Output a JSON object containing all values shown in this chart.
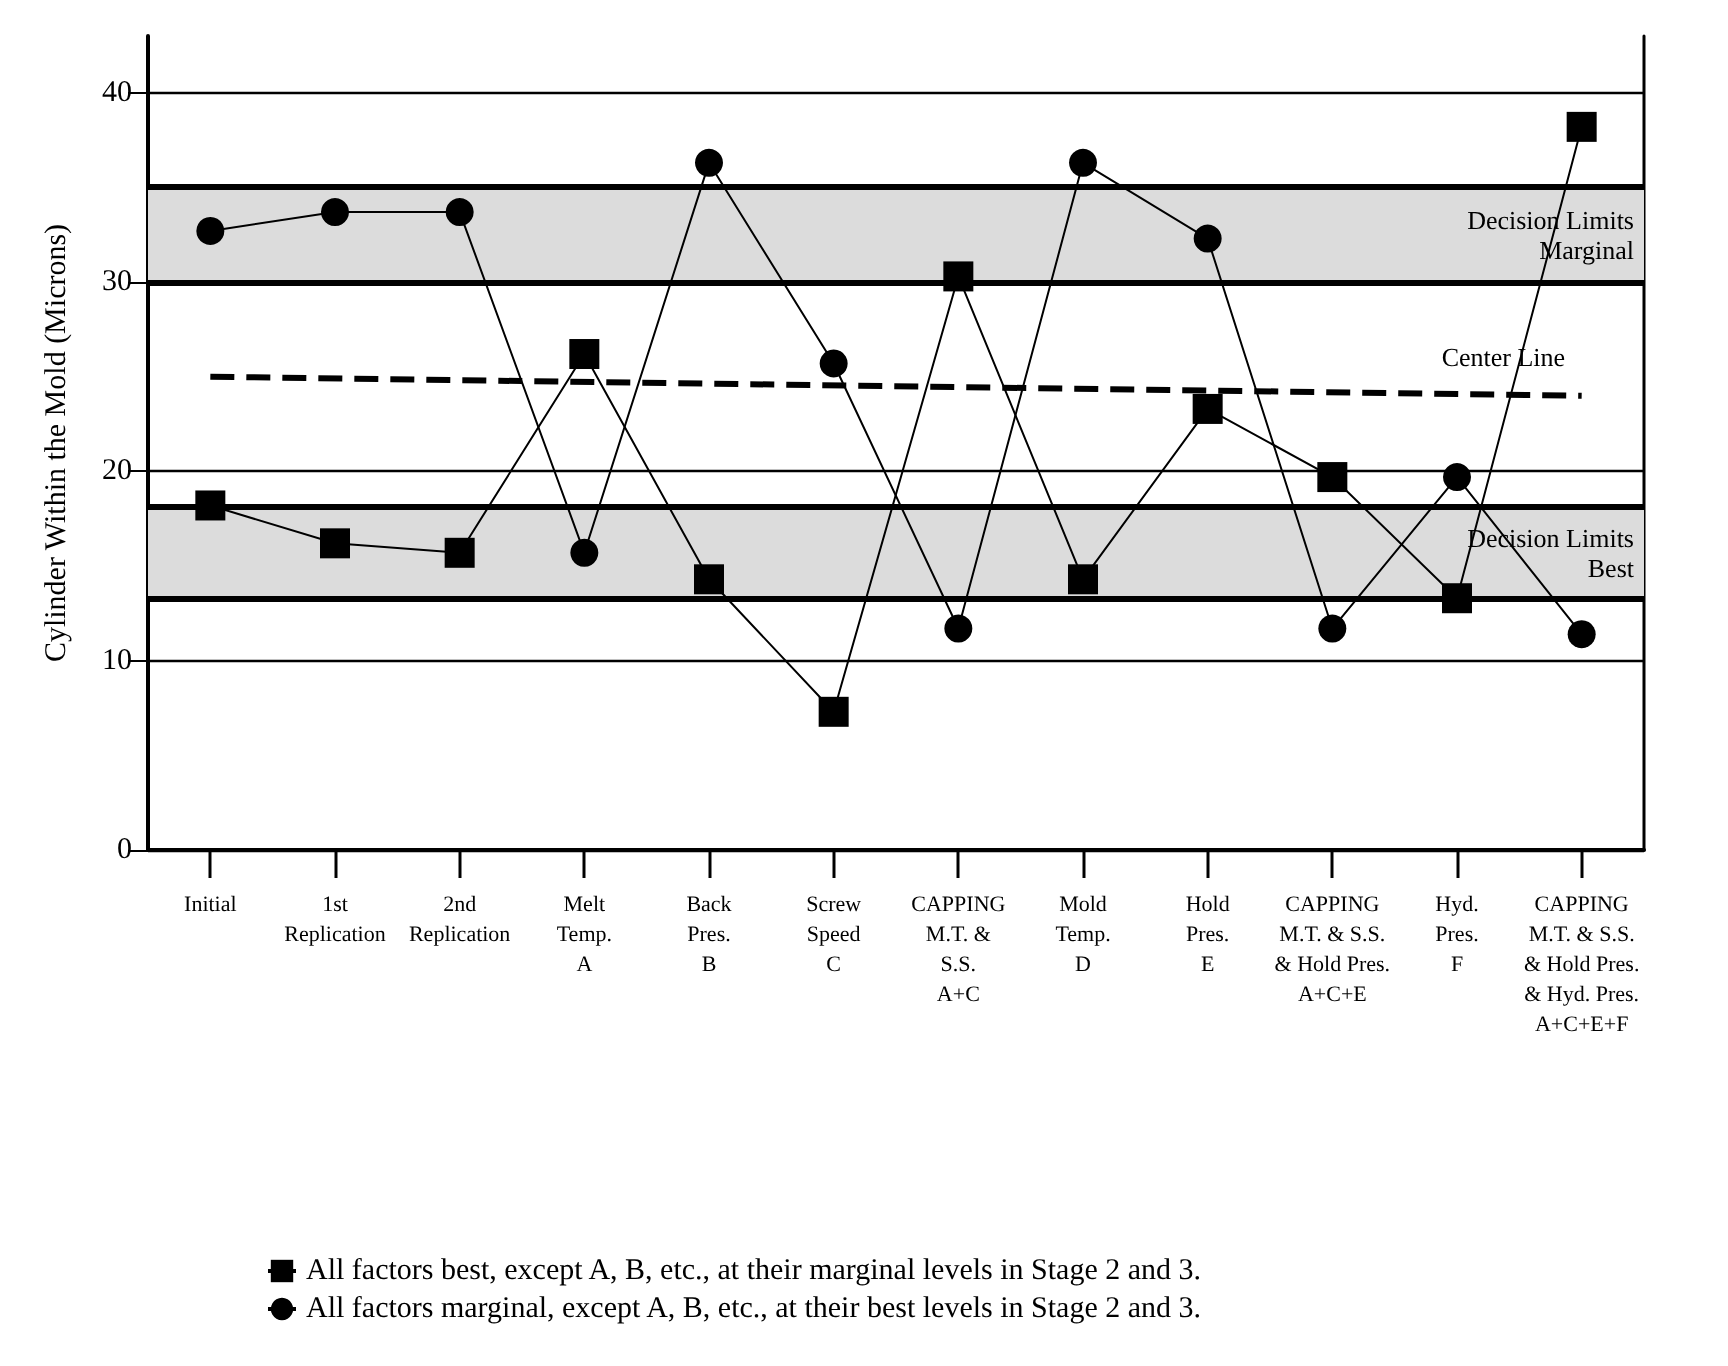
{
  "chart_data": {
    "type": "line",
    "ylabel": "Cylinder Within the Mold (Microns)",
    "categories": [
      "Initial",
      "1st\nReplication",
      "2nd\nReplication",
      "Melt\nTemp.\nA",
      "Back\nPres.\nB",
      "Screw\nSpeed\nC",
      "CAPPING\nM.T. &\nS.S.\nA+C",
      "Mold\nTemp.\nD",
      "Hold\nPres.\nE",
      "CAPPING\nM.T. & S.S.\n& Hold Pres.\nA+C+E",
      "Hyd.\nPres.\nF",
      "CAPPING\nM.T. & S.S.\n& Hold Pres.\n& Hyd. Pres.\nA+C+E+F"
    ],
    "series": [
      {
        "name": "All factors best, except A, B, etc., at their marginal levels in Stage 2 and 3.",
        "color": "#000000",
        "marker": "square",
        "values": [
          18.2,
          16.2,
          15.7,
          26.2,
          14.3,
          7.3,
          30.3,
          14.3,
          23.3,
          19.7,
          13.3,
          38.2
        ]
      },
      {
        "name": "All factors marginal, except A, B, etc., at their best levels in Stage 2 and 3.",
        "color": "#000000",
        "marker": "circle",
        "values": [
          32.7,
          33.7,
          33.7,
          15.7,
          36.3,
          25.7,
          11.7,
          36.3,
          32.3,
          11.7,
          19.7,
          11.4
        ]
      },
      {
        "name": "Center Line",
        "color": "#000000",
        "marker": "none",
        "line_style": "dashed",
        "values": [
          25.0,
          null,
          null,
          null,
          null,
          null,
          null,
          null,
          null,
          null,
          null,
          24.0
        ]
      }
    ],
    "bands": [
      {
        "axis": "y",
        "from": 30,
        "to": 35,
        "label": "Decision Limits\nMarginal",
        "color": "#dcdcdc"
      },
      {
        "axis": "y",
        "from": 13.3,
        "to": 18.1,
        "label": "Decision Limits\nBest",
        "color": "#dcdcdc"
      }
    ],
    "ylim": [
      0,
      43
    ],
    "yticks": [
      0,
      10,
      20,
      30,
      40
    ],
    "grid": "y",
    "legend": "bottom"
  }
}
